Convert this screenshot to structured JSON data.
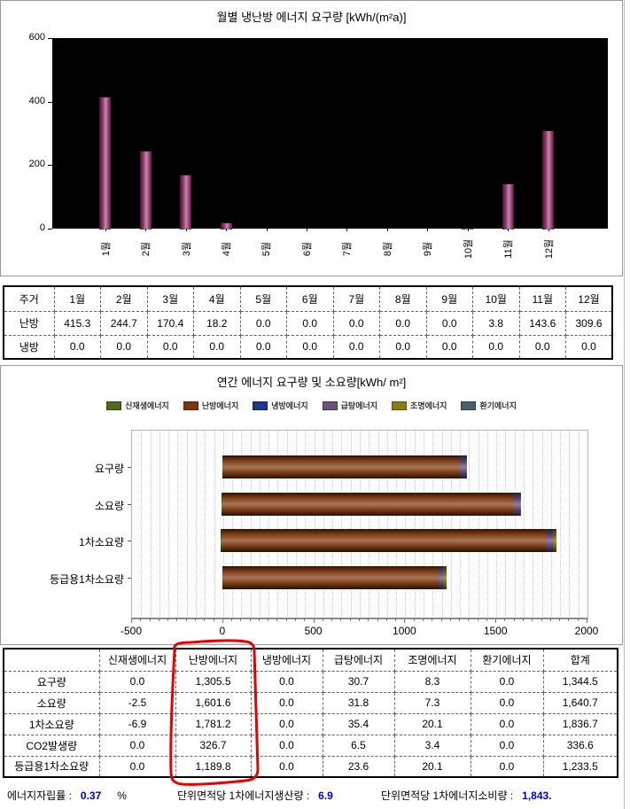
{
  "chart_data": [
    {
      "type": "bar",
      "title": "월별 냉난방 에너지 요구량 [kWh/(m²a)]",
      "categories": [
        "1월",
        "2월",
        "3월",
        "4월",
        "5월",
        "6월",
        "7월",
        "8월",
        "9월",
        "10월",
        "11월",
        "12월"
      ],
      "series": [
        {
          "name": "난방",
          "values": [
            415.3,
            244.7,
            170.4,
            18.2,
            0.0,
            0.0,
            0.0,
            0.0,
            0.0,
            3.8,
            143.6,
            309.6
          ]
        },
        {
          "name": "냉방",
          "values": [
            0.0,
            0.0,
            0.0,
            0.0,
            0.0,
            0.0,
            0.0,
            0.0,
            0.0,
            0.0,
            0.0,
            0.0
          ]
        }
      ],
      "ylim": [
        0,
        600
      ],
      "yticks": [
        0,
        200,
        400,
        600
      ],
      "bar_color": "#9a4873",
      "plot_bg": "#000000",
      "grid": false,
      "legend_position": "none"
    },
    {
      "type": "stacked-bar-horizontal",
      "title": "연간 에너지 요구량 및 소요량[kWh/ m²]",
      "categories": [
        "요구량",
        "소요량",
        "1차소요량",
        "등급용1차소요량"
      ],
      "series": [
        {
          "name": "신재생에너지",
          "color": "#4f6b1a",
          "values": [
            0.0,
            -2.5,
            -6.9,
            0.0
          ]
        },
        {
          "name": "난방에너지",
          "color": "#83330e",
          "values": [
            1305.5,
            1601.6,
            1781.2,
            1189.8
          ]
        },
        {
          "name": "냉방에너지",
          "color": "#1c3a8a",
          "values": [
            0.0,
            0.0,
            0.0,
            0.0
          ]
        },
        {
          "name": "급탕에너지",
          "color": "#6c5181",
          "values": [
            30.7,
            31.8,
            35.4,
            23.6
          ]
        },
        {
          "name": "조명에너지",
          "color": "#8b7d12",
          "values": [
            8.3,
            7.3,
            20.1,
            20.1
          ]
        },
        {
          "name": "환기에너지",
          "color": "#4a6076",
          "values": [
            0.0,
            0.0,
            0.0,
            0.0
          ]
        }
      ],
      "xlim": [
        -500,
        2000
      ],
      "xticks": [
        -500,
        0,
        500,
        1000,
        1500,
        2000
      ],
      "grid": true,
      "legend_position": "top"
    }
  ],
  "monthly_table": {
    "header": [
      "주거",
      "1월",
      "2월",
      "3월",
      "4월",
      "5월",
      "6월",
      "7월",
      "8월",
      "9월",
      "10월",
      "11월",
      "12월"
    ],
    "rows": [
      {
        "label": "난방",
        "values": [
          "415.3",
          "244.7",
          "170.4",
          "18.2",
          "0.0",
          "0.0",
          "0.0",
          "0.0",
          "0.0",
          "3.8",
          "143.6",
          "309.6"
        ]
      },
      {
        "label": "냉방",
        "values": [
          "0.0",
          "0.0",
          "0.0",
          "0.0",
          "0.0",
          "0.0",
          "0.0",
          "0.0",
          "0.0",
          "0.0",
          "0.0",
          "0.0"
        ]
      }
    ]
  },
  "annual_table": {
    "header": [
      "",
      "신재생에너지",
      "난방에너지",
      "냉방에너지",
      "급탕에너지",
      "조명에너지",
      "환기에너지",
      "합계"
    ],
    "rows": [
      {
        "label": "요구량",
        "values": [
          "0.0",
          "1,305.5",
          "0.0",
          "30.7",
          "8.3",
          "0.0",
          "1,344.5"
        ]
      },
      {
        "label": "소요량",
        "values": [
          "-2.5",
          "1,601.6",
          "0.0",
          "31.8",
          "7.3",
          "0.0",
          "1,640.7"
        ]
      },
      {
        "label": "1차소요량",
        "values": [
          "-6.9",
          "1,781.2",
          "0.0",
          "35.4",
          "20.1",
          "0.0",
          "1,836.7"
        ]
      },
      {
        "label": "CO2발생량",
        "values": [
          "0.0",
          "326.7",
          "0.0",
          "6.5",
          "3.4",
          "0.0",
          "336.6"
        ]
      },
      {
        "label": "등급용1차소요량",
        "values": [
          "0.0",
          "1,189.8",
          "0.0",
          "23.6",
          "20.1",
          "0.0",
          "1,233.5"
        ]
      }
    ]
  },
  "annotation": {
    "shape": "hand-drawn-rounded-rect",
    "color": "#e60000",
    "target_column": "난방에너지"
  },
  "footer": {
    "value_color": "#0000cc",
    "items": [
      {
        "label": "에너지자립률 :",
        "value": "0.37",
        "suffix": "%"
      },
      {
        "label": "단위면적당 1차에너지생산량 :",
        "value": "6.9",
        "suffix": ""
      },
      {
        "label": "단위면적당 1차에너지소비량 :",
        "value": "1,843.",
        "suffix": ""
      }
    ]
  }
}
